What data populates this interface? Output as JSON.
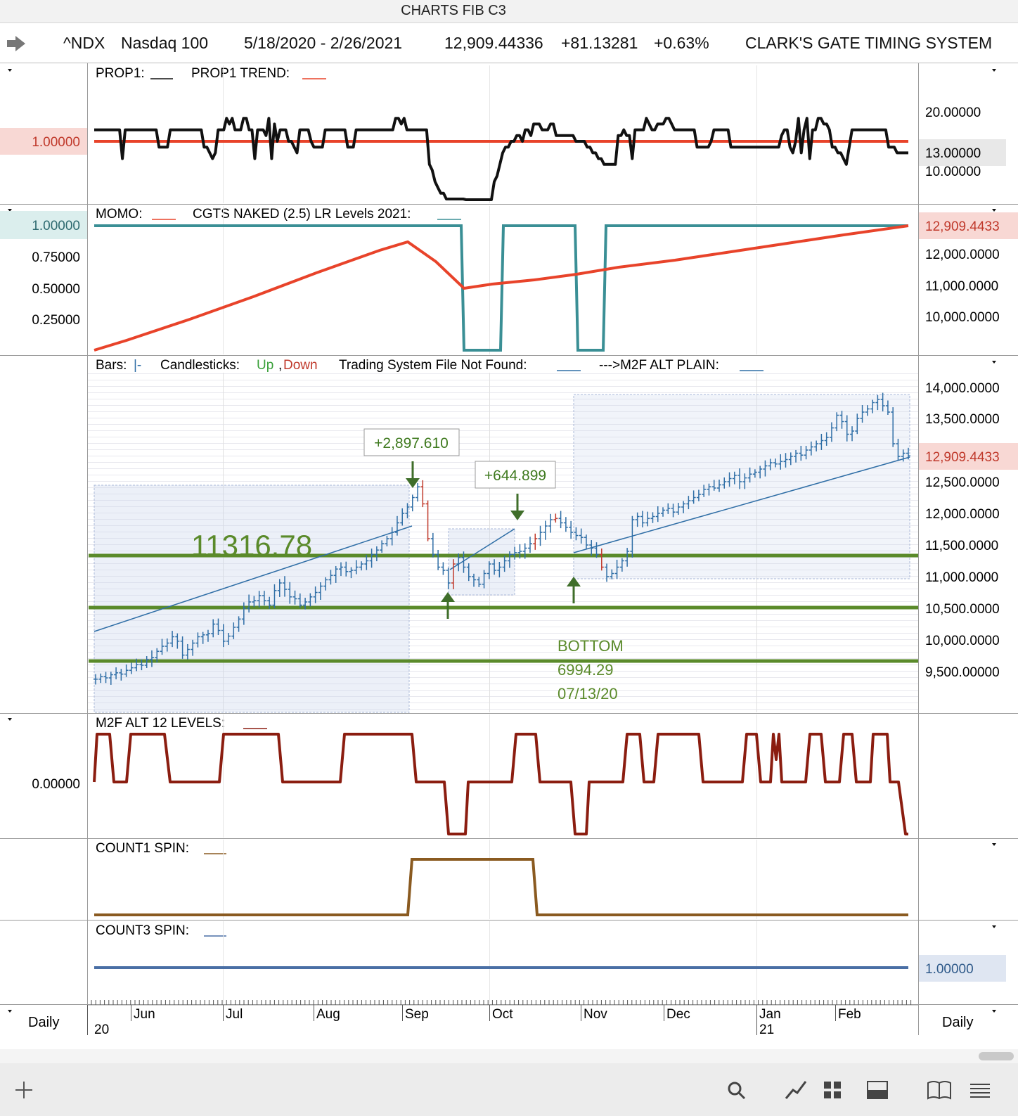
{
  "window": {
    "title": "CHARTS FIB C3"
  },
  "header": {
    "symbol": "^NDX",
    "name": "Nasdaq 100",
    "date_range": "5/18/2020 - 2/26/2021",
    "last": "12,909.44336",
    "change": "+81.13281",
    "change_pct": "+0.63%",
    "system_name": "CLARK'S GATE TIMING SYSTEM"
  },
  "colors": {
    "prop_line": "#111111",
    "threshold": "#e8432a",
    "momo_teal": "#3a8f95",
    "momo_red": "#e8432a",
    "price_bar": "#2f6ea6",
    "down_bar": "#c0392b",
    "level_green": "#5a8a2a",
    "m2f": "#8b1d10",
    "count1": "#8a5a20",
    "count3": "#4a6fa5"
  },
  "panels": {
    "prop": {
      "legend": "PROP1:___   PROP1 TREND:___",
      "legend_a": "PROP1:",
      "legend_b": "PROP1 TREND:",
      "left_value": "1.00000",
      "right_ticks": [
        "20.00000",
        "13.00000",
        "10.00000"
      ],
      "right_highlight": "13.00000",
      "series_values": [
        17,
        17,
        17,
        17,
        17,
        17,
        17,
        17,
        17,
        17,
        12,
        17,
        17,
        17,
        17,
        17,
        17,
        17,
        17,
        17,
        17,
        17,
        17,
        14,
        14,
        14,
        14,
        17,
        17,
        17,
        17,
        17,
        17,
        17,
        17,
        17,
        17,
        17,
        17,
        14,
        14,
        13,
        12,
        13,
        17,
        17,
        17,
        19,
        18,
        19,
        17,
        17,
        17,
        19,
        19,
        17,
        17,
        12,
        17,
        17,
        17,
        16,
        19,
        12,
        18,
        15,
        17,
        17,
        17,
        15,
        15,
        14,
        13,
        17,
        17,
        17,
        17,
        15,
        14,
        14,
        14,
        14,
        17,
        17,
        17,
        17,
        17,
        17,
        17,
        17,
        14,
        14,
        14,
        17,
        17,
        17,
        17,
        17,
        17,
        17,
        17,
        17,
        17,
        17,
        17,
        17,
        17,
        19,
        19,
        18,
        19,
        17,
        17,
        17,
        17,
        17,
        17,
        17,
        17,
        11,
        10,
        8,
        7,
        6,
        6,
        5,
        5,
        5,
        5,
        5,
        5,
        5,
        4,
        4,
        4,
        4,
        4,
        4,
        4,
        4,
        4,
        4,
        8,
        9,
        11,
        13,
        14,
        14,
        15,
        15,
        16,
        16,
        15,
        17,
        17,
        16,
        18,
        18,
        18,
        17,
        17,
        17,
        18,
        18,
        16,
        16,
        16,
        16,
        16,
        16,
        16,
        15,
        15,
        15,
        15,
        14,
        14,
        13,
        13,
        12,
        12,
        11,
        11,
        11,
        11,
        11,
        16,
        16,
        17,
        16,
        16,
        12,
        17,
        17,
        17,
        17,
        19,
        18,
        17,
        17,
        18,
        18,
        18,
        19,
        19,
        18,
        17,
        17,
        17,
        17,
        17,
        17,
        17,
        17,
        14,
        14,
        14,
        14,
        14,
        15,
        17,
        17,
        17,
        17,
        17,
        17,
        14,
        14,
        14,
        14,
        14,
        14,
        14,
        14,
        14,
        14,
        14,
        14,
        14,
        14,
        14,
        14,
        14,
        14,
        16,
        17,
        17,
        14,
        13,
        15,
        19,
        13,
        17,
        19,
        12,
        17,
        17,
        19,
        19,
        18,
        18,
        17,
        14,
        14,
        13,
        13,
        12,
        11,
        14,
        17,
        17,
        17,
        17,
        17,
        17,
        17,
        17,
        17,
        17,
        17,
        17,
        17,
        14,
        14,
        14,
        13,
        13,
        13,
        13,
        13
      ]
    },
    "momo": {
      "legend": "MOMO:___   CGTS NAKED (2.5) LR Levels 2021:___",
      "legend_a": "MOMO:",
      "legend_b": "CGTS NAKED (2.5) LR Levels 2021:",
      "left_ticks": [
        "1.00000",
        "0.75000",
        "0.50000",
        "0.25000"
      ],
      "left_highlight": "1.00000",
      "right_ticks": [
        "12,000.0000",
        "11,000.0000",
        "10,000.0000"
      ],
      "right_highlight": "12,909.4433"
    },
    "price": {
      "legend_bars": "Bars:",
      "legend_candles": "Candlesticks:",
      "legend_up": "Up",
      "legend_down": "Down",
      "legend_trading": "Trading System File Not Found:",
      "legend_m2f": "--->M2F ALT PLAIN:",
      "right_ticks": [
        "14,000.0000",
        "13,500.0000",
        "12,500.0000",
        "12,000.0000",
        "11,500.0000",
        "11,000.0000",
        "10,500.0000",
        "10,000.0000",
        "9,500.00000"
      ],
      "right_highlight": "12,909.4433",
      "level_label": "11316.78",
      "gain_label_1": "+2,897.610",
      "gain_label_2": "+644.899",
      "bottom_title": "BOTTOM",
      "bottom_value": "6994.29",
      "bottom_date": "07/13/20",
      "levels": [
        11316.78,
        10480,
        9650
      ],
      "closes": [
        9380,
        9420,
        9400,
        9450,
        9480,
        9460,
        9520,
        9560,
        9610,
        9600,
        9690,
        9720,
        9820,
        9900,
        9950,
        10050,
        9980,
        9760,
        9850,
        9950,
        10050,
        10080,
        10100,
        10250,
        10150,
        9980,
        10060,
        10200,
        10330,
        10500,
        10600,
        10620,
        10700,
        10620,
        10550,
        10780,
        10900,
        10800,
        10680,
        10650,
        10550,
        10600,
        10680,
        10750,
        10850,
        10950,
        11020,
        11120,
        11150,
        11080,
        11100,
        11150,
        11200,
        11250,
        11350,
        11420,
        11520,
        11600,
        11700,
        11850,
        12000,
        12100,
        12250,
        12420,
        12150,
        11600,
        11350,
        11150,
        11100,
        10900,
        11200,
        11300,
        11150,
        11000,
        10950,
        10880,
        11050,
        11200,
        11100,
        11150,
        11250,
        11350,
        11380,
        11400,
        11450,
        11520,
        11600,
        11700,
        11800,
        11900,
        11920,
        11850,
        11780,
        11700,
        11650,
        11620,
        11500,
        11450,
        11350,
        11150,
        11000,
        11050,
        11150,
        11250,
        11400,
        11900,
        11950,
        11850,
        11920,
        11950,
        12000,
        12050,
        12080,
        12020,
        12100,
        12150,
        12200,
        12250,
        12300,
        12380,
        12420,
        12400,
        12450,
        12500,
        12550,
        12600,
        12500,
        12560,
        12620,
        12650,
        12700,
        12750,
        12800,
        12780,
        12820,
        12850,
        12900,
        12950,
        12920,
        13000,
        13050,
        13100,
        13150,
        13200,
        13350,
        13550,
        13450,
        13250,
        13300,
        13500,
        13600,
        13650,
        13750,
        13800,
        13700,
        13600,
        13100,
        12900,
        12950,
        12909
      ]
    },
    "m2f": {
      "legend": "M2F ALT 12 LEVELS:___",
      "legend_a": "M2F ALT 12 LEVELS:",
      "left_value": "0.00000"
    },
    "count1": {
      "legend": "COUNT1 SPIN:___",
      "legend_a": "COUNT1 SPIN:"
    },
    "count3": {
      "legend": "COUNT3 SPIN:___",
      "legend_a": "COUNT3 SPIN:",
      "right_value": "1.00000"
    }
  },
  "axis": {
    "months": [
      "Jun",
      "Jul",
      "Aug",
      "Sep",
      "Oct",
      "Nov",
      "Dec",
      "Jan",
      "Feb"
    ],
    "year_labels": [
      "20",
      "21"
    ],
    "interval_left": "Daily",
    "interval_right": "Daily"
  },
  "toolbar": {
    "icons": [
      "plus-icon",
      "search-icon",
      "line-chart-icon",
      "grid-icon",
      "panel-icon",
      "book-icon",
      "menu-icon"
    ]
  }
}
